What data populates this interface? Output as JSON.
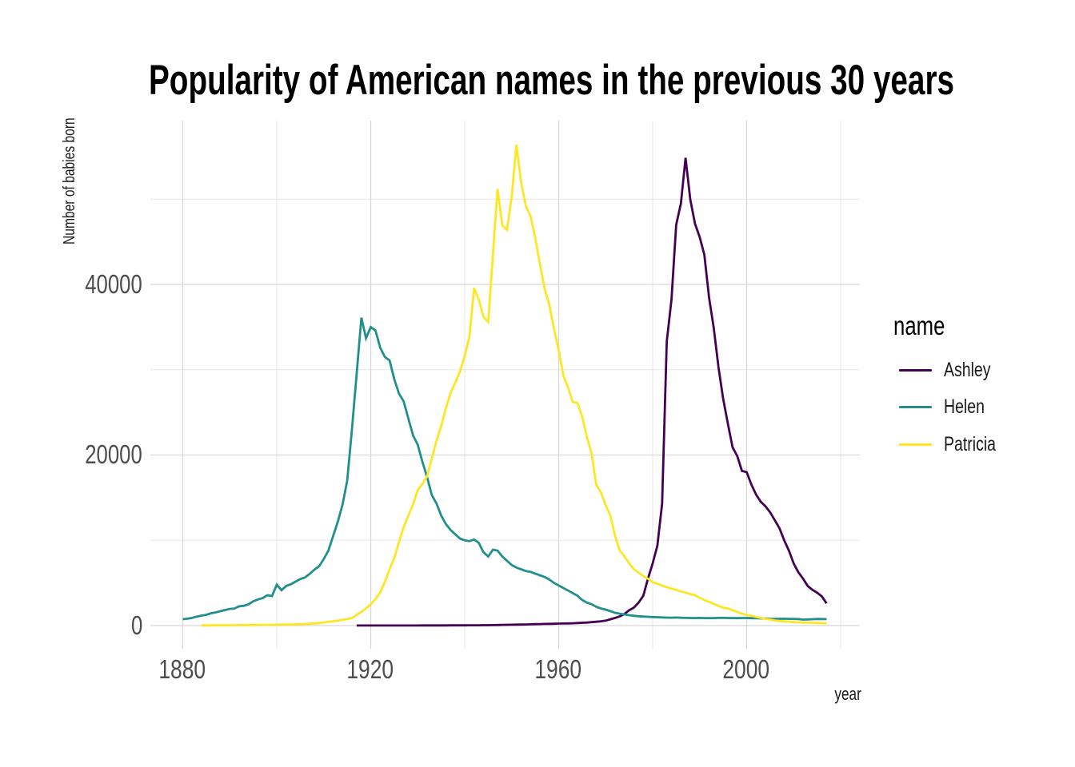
{
  "title": "Popularity of American names in the previous 30 years",
  "axes": {
    "x_title": "year",
    "y_title": "Number of babies born",
    "x_tick_labels": [
      "1880",
      "1920",
      "1960",
      "2000"
    ],
    "y_tick_labels": [
      "0",
      "20000",
      "40000"
    ]
  },
  "legend": {
    "title": "name",
    "entries": [
      {
        "label": "Ashley",
        "color": "#440154"
      },
      {
        "label": "Helen",
        "color": "#21908C"
      },
      {
        "label": "Patricia",
        "color": "#FDE725"
      }
    ]
  },
  "chart_data": {
    "type": "line",
    "title": "Popularity of American names in the previous 30 years",
    "xlabel": "year",
    "ylabel": "Number of babies born",
    "xlim": [
      1873.1,
      2023.9
    ],
    "ylim": [
      -2800,
      59300
    ],
    "x_ticks": [
      1880,
      1920,
      1960,
      2000
    ],
    "x_minor_ticks": [
      1900,
      1940,
      1980,
      2020
    ],
    "y_ticks": [
      0,
      20000,
      40000
    ],
    "y_minor_ticks": [
      10000,
      30000,
      50000
    ],
    "grid": true,
    "legend_title": "name",
    "legend_position": "right",
    "series": [
      {
        "name": "Ashley",
        "color": "#440154",
        "start_year": 1917,
        "values": [
          5,
          6,
          6,
          8,
          8,
          9,
          10,
          10,
          11,
          12,
          12,
          13,
          13,
          14,
          15,
          16,
          16,
          18,
          20,
          22,
          24,
          26,
          28,
          30,
          33,
          36,
          40,
          45,
          50,
          60,
          70,
          80,
          90,
          100,
          110,
          120,
          135,
          150,
          165,
          180,
          195,
          210,
          220,
          230,
          240,
          255,
          270,
          300,
          330,
          360,
          400,
          450,
          510,
          580,
          740,
          900,
          1080,
          1370,
          1800,
          2110,
          2690,
          3500,
          5500,
          7300,
          9400,
          14300,
          33300,
          38200,
          47000,
          49500,
          54850,
          49970,
          47120,
          45550,
          43480,
          38450,
          34870,
          30280,
          26600,
          23680,
          20900,
          19870,
          18140,
          18000,
          16530,
          15350,
          14520,
          13990,
          13270,
          12340,
          11400,
          9990,
          8780,
          7280,
          6260,
          5510,
          4640,
          4190,
          3860,
          3420,
          2600
        ]
      },
      {
        "name": "Helen",
        "color": "#21908C",
        "start_year": 1880,
        "values": [
          750,
          810,
          900,
          1060,
          1170,
          1260,
          1440,
          1550,
          1690,
          1830,
          1960,
          2000,
          2260,
          2320,
          2500,
          2850,
          3060,
          3220,
          3560,
          3470,
          4800,
          4150,
          4650,
          4850,
          5150,
          5450,
          5650,
          6050,
          6550,
          6950,
          7800,
          8800,
          10500,
          12200,
          14200,
          17000,
          23000,
          29500,
          36100,
          33700,
          35000,
          34600,
          32600,
          31500,
          31100,
          28900,
          27200,
          26300,
          24300,
          22300,
          21200,
          19200,
          17400,
          15300,
          14300,
          12900,
          11900,
          11200,
          10700,
          10200,
          10000,
          9900,
          10100,
          9700,
          8600,
          8100,
          8900,
          8800,
          8100,
          7600,
          7100,
          6800,
          6600,
          6400,
          6300,
          6100,
          5900,
          5700,
          5400,
          5000,
          4700,
          4400,
          4100,
          3800,
          3500,
          3000,
          2700,
          2500,
          2200,
          2000,
          1870,
          1700,
          1500,
          1400,
          1300,
          1220,
          1150,
          1100,
          1060,
          1030,
          1000,
          980,
          960,
          940,
          930,
          950,
          920,
          900,
          890,
          880,
          900,
          880,
          870,
          880,
          900,
          910,
          890,
          880,
          870,
          890,
          890,
          870,
          850,
          840,
          820,
          800,
          790,
          800,
          810,
          790,
          780,
          770,
          700,
          720,
          750,
          780,
          770,
          760
        ]
      },
      {
        "name": "Patricia",
        "color": "#FDE725",
        "start_year": 1884,
        "values": [
          20,
          22,
          25,
          28,
          32,
          36,
          40,
          45,
          50,
          55,
          60,
          66,
          72,
          80,
          88,
          95,
          105,
          112,
          122,
          134,
          148,
          165,
          185,
          215,
          255,
          300,
          370,
          440,
          510,
          580,
          670,
          780,
          900,
          1250,
          1600,
          2000,
          2500,
          3100,
          3900,
          5100,
          6600,
          7900,
          9800,
          11500,
          12900,
          14200,
          15900,
          16600,
          17500,
          19600,
          21700,
          23400,
          25500,
          27300,
          28500,
          29800,
          31600,
          33900,
          39600,
          38200,
          36200,
          35600,
          43500,
          51200,
          46900,
          46400,
          50300,
          56400,
          52000,
          49200,
          48000,
          45500,
          42400,
          39500,
          37600,
          34800,
          32300,
          29300,
          27900,
          26200,
          26100,
          24500,
          22100,
          20200,
          16500,
          15600,
          14100,
          12900,
          10500,
          8800,
          8100,
          7300,
          6600,
          6200,
          5800,
          5500,
          5100,
          4900,
          4700,
          4500,
          4340,
          4180,
          4000,
          3870,
          3700,
          3560,
          3250,
          3000,
          2780,
          2550,
          2310,
          2100,
          2000,
          1800,
          1600,
          1400,
          1250,
          1150,
          1000,
          900,
          800,
          700,
          600,
          530,
          500,
          450,
          400,
          380,
          360,
          345,
          330,
          310,
          290,
          260
        ]
      }
    ]
  }
}
